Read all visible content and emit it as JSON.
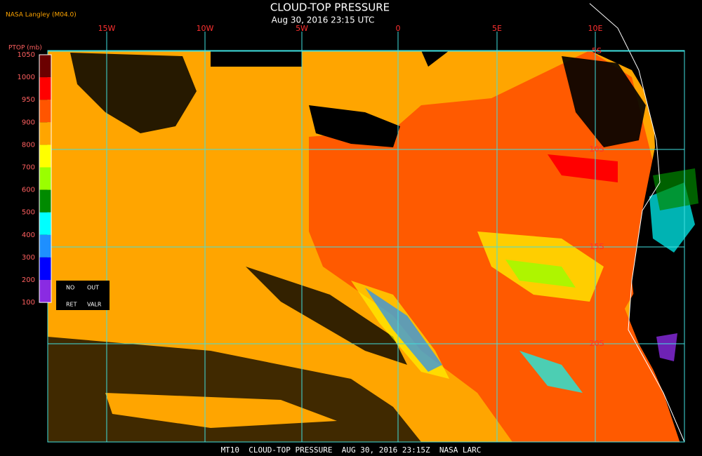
{
  "header": {
    "title": "CLOUD-TOP PRESSURE",
    "subtitle": "Aug 30, 2016 23:15 UTC",
    "source": "NASA Langley (M04.0)"
  },
  "colorbar": {
    "label": "PTOP (mb)",
    "levels": [
      {
        "label": "1050",
        "color": "#6b0000"
      },
      {
        "label": "1000",
        "color": "#ff0000"
      },
      {
        "label": "950",
        "color": "#ff5500"
      },
      {
        "label": "900",
        "color": "#ffa500"
      },
      {
        "label": "800",
        "color": "#ffff00"
      },
      {
        "label": "700",
        "color": "#9aff00"
      },
      {
        "label": "600",
        "color": "#008a00"
      },
      {
        "label": "500",
        "color": "#00ffff"
      },
      {
        "label": "400",
        "color": "#1e8fff"
      },
      {
        "label": "300",
        "color": "#0000ff"
      },
      {
        "label": "200",
        "color": "#8a2be2"
      },
      {
        "label": "100",
        "color": null
      }
    ],
    "boxes": [
      "NO",
      "OUT",
      "RET",
      "VALR"
    ]
  },
  "map": {
    "longitudes": [
      "15W",
      "10W",
      "5W",
      "0",
      "5E",
      "10E"
    ],
    "latitudes": [
      "5S",
      "10S",
      "15S",
      "20S"
    ]
  },
  "footer": "MT10  CLOUD-TOP PRESSURE  AUG 30, 2016 23:15Z  NASA LARC"
}
